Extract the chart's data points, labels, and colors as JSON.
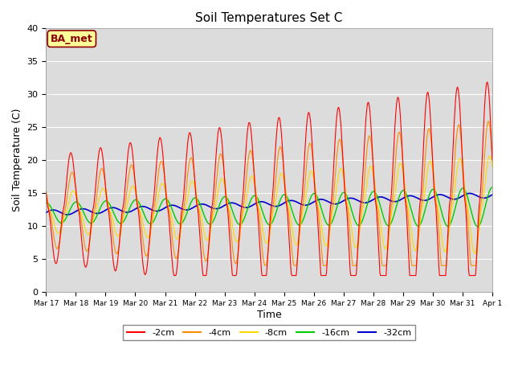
{
  "title": "Soil Temperatures Set C",
  "xlabel": "Time",
  "ylabel": "Soil Temperature (C)",
  "ylim": [
    0,
    40
  ],
  "annotation": "BA_met",
  "annotation_box_color": "#FFFF99",
  "annotation_text_color": "#8B0000",
  "annotation_border_color": "#8B0000",
  "background_color": "#DCDCDC",
  "series": [
    {
      "label": "-2cm",
      "color": "#FF0000",
      "lw": 0.8
    },
    {
      "label": "-4cm",
      "color": "#FF8C00",
      "lw": 0.8
    },
    {
      "label": "-8cm",
      "color": "#FFD700",
      "lw": 0.8
    },
    {
      "label": "-16cm",
      "color": "#00CC00",
      "lw": 1.0
    },
    {
      "label": "-32cm",
      "color": "#0000CD",
      "lw": 1.2
    }
  ],
  "xtick_labels": [
    "Mar 17",
    "Mar 18",
    "Mar 19",
    "Mar 20",
    "Mar 21",
    "Mar 22",
    "Mar 23",
    "Mar 24",
    "Mar 25",
    "Mar 26",
    "Mar 27",
    "Mar 28",
    "Mar 29",
    "Mar 30",
    "Mar 31",
    "Apr 1"
  ],
  "ytick_labels": [
    0,
    5,
    10,
    15,
    20,
    25,
    30,
    35,
    40
  ],
  "figsize": [
    6.4,
    4.8
  ],
  "dpi": 100
}
